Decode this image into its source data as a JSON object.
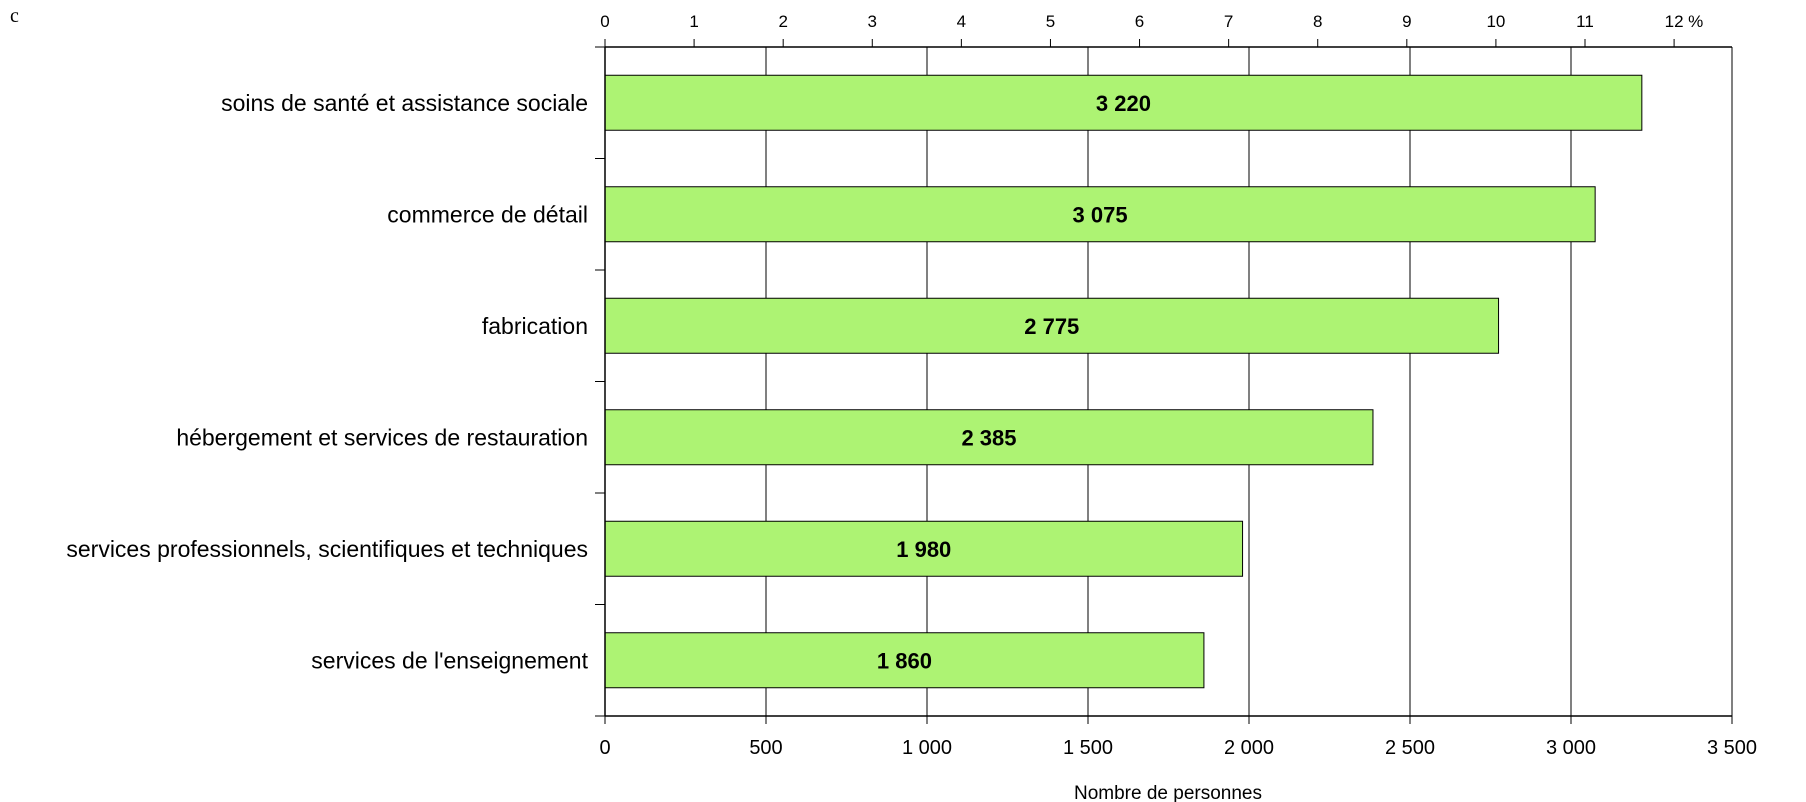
{
  "corner_label": "c",
  "colors": {
    "bar_fill": "#adf373",
    "bar_stroke": "#000000",
    "grid": "#000000"
  },
  "chart_data": {
    "type": "bar",
    "orientation": "horizontal",
    "categories": [
      "soins de santé et assistance sociale",
      "commerce de détail",
      "fabrication",
      "hébergement et services de restauration",
      "services professionnels, scientifiques et techniques",
      "services de l'enseignement"
    ],
    "values": [
      3220,
      3075,
      2775,
      2385,
      1980,
      1860
    ],
    "value_labels": [
      "3 220",
      "3 075",
      "2 775",
      "2 385",
      "1 980",
      "1 860"
    ],
    "xlabel": "Nombre de personnes",
    "xlim": [
      0,
      3500
    ],
    "x_ticks": [
      0,
      500,
      1000,
      1500,
      2000,
      2500,
      3000,
      3500
    ],
    "x_tick_labels": [
      "0",
      "500",
      "1 000",
      "1 500",
      "2 000",
      "2 500",
      "3 000",
      "3 500"
    ],
    "top_axis": {
      "unit": "%",
      "ticks": [
        0,
        1,
        2,
        3,
        4,
        5,
        6,
        7,
        8,
        9,
        10,
        11,
        12
      ],
      "tick_labels": [
        "0",
        "1",
        "2",
        "3",
        "4",
        "5",
        "6",
        "7",
        "8",
        "9",
        "10",
        "11",
        "12"
      ],
      "percent_at_xmax": 12.65
    },
    "grid": true
  }
}
